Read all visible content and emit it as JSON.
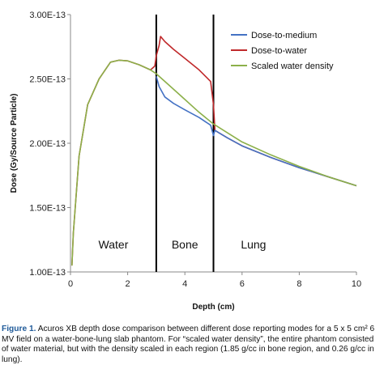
{
  "chart_data": {
    "type": "line",
    "xlabel": "Depth (cm)",
    "ylabel": "Dose (Gy/Source Particle)",
    "xlim": [
      0,
      10
    ],
    "ylim": [
      1e-13,
      3e-13
    ],
    "x_ticks": [
      "0",
      "2",
      "4",
      "6",
      "8",
      "10"
    ],
    "y_ticks": [
      "1.00E-13",
      "1.50E-13",
      "2.00E-13",
      "2.50E-13",
      "3.00E-13"
    ],
    "grid": false,
    "legend_position": "top-right",
    "boundaries": [
      3,
      5
    ],
    "regions": [
      "Water",
      "Bone",
      "Lung"
    ],
    "series": [
      {
        "name": "Dose-to-medium",
        "color": "#4472c4",
        "x": [
          3.0,
          3.1,
          3.3,
          3.6,
          4.0,
          4.5,
          4.9,
          5.0,
          5.05,
          5.2,
          5.5,
          6,
          7,
          8,
          9,
          10
        ],
        "y": [
          2.52e-13,
          2.44e-13,
          2.36e-13,
          2.31e-13,
          2.26e-13,
          2.2e-13,
          2.14e-13,
          2.06e-13,
          2.1e-13,
          2.08e-13,
          2.04e-13,
          1.98e-13,
          1.89e-13,
          1.81e-13,
          1.74e-13,
          1.67e-13
        ]
      },
      {
        "name": "Dose-to-water",
        "color": "#c0292b",
        "x": [
          0.05,
          0.1,
          0.3,
          0.6,
          1.0,
          1.4,
          1.7,
          2.0,
          2.4,
          2.8,
          2.95,
          3.0,
          3.1,
          3.15,
          3.3,
          3.6,
          4.0,
          4.5,
          4.9,
          5.0,
          5.05,
          5.2,
          5.5,
          6,
          7,
          8,
          9,
          10
        ],
        "y": [
          1.05e-13,
          1.3e-13,
          1.9e-13,
          2.3e-13,
          2.5e-13,
          2.63e-13,
          2.645e-13,
          2.64e-13,
          2.61e-13,
          2.57e-13,
          2.6e-13,
          2.68e-13,
          2.76e-13,
          2.83e-13,
          2.79e-13,
          2.73e-13,
          2.66e-13,
          2.57e-13,
          2.48e-13,
          2.3e-13,
          2.1e-13,
          2.08e-13,
          2.04e-13,
          1.98e-13,
          1.89e-13,
          1.81e-13,
          1.74e-13,
          1.67e-13
        ]
      },
      {
        "name": "Scaled water density",
        "color": "#8cb04a",
        "x": [
          0.05,
          0.1,
          0.3,
          0.6,
          1.0,
          1.4,
          1.7,
          2.0,
          2.4,
          2.8,
          3.0,
          3.5,
          4.0,
          4.5,
          5.0,
          5.5,
          6,
          7,
          8,
          9,
          10
        ],
        "y": [
          1.05e-13,
          1.3e-13,
          1.9e-13,
          2.3e-13,
          2.5e-13,
          2.63e-13,
          2.645e-13,
          2.64e-13,
          2.61e-13,
          2.57e-13,
          2.54e-13,
          2.44e-13,
          2.34e-13,
          2.24e-13,
          2.15e-13,
          2.08e-13,
          2.01e-13,
          1.91e-13,
          1.82e-13,
          1.74e-13,
          1.67e-13
        ]
      }
    ]
  },
  "caption": {
    "label": "Figure 1.",
    "text": "Acuros XB depth dose comparison between different dose reporting modes for a 5 x 5 cm² 6 MV field on a water-bone-lung slab phantom. For “scaled water density”, the entire phantom consisted of water material, but with the density scaled in each region (1.85 g/cc in bone region, and 0.26 g/cc in lung)."
  }
}
